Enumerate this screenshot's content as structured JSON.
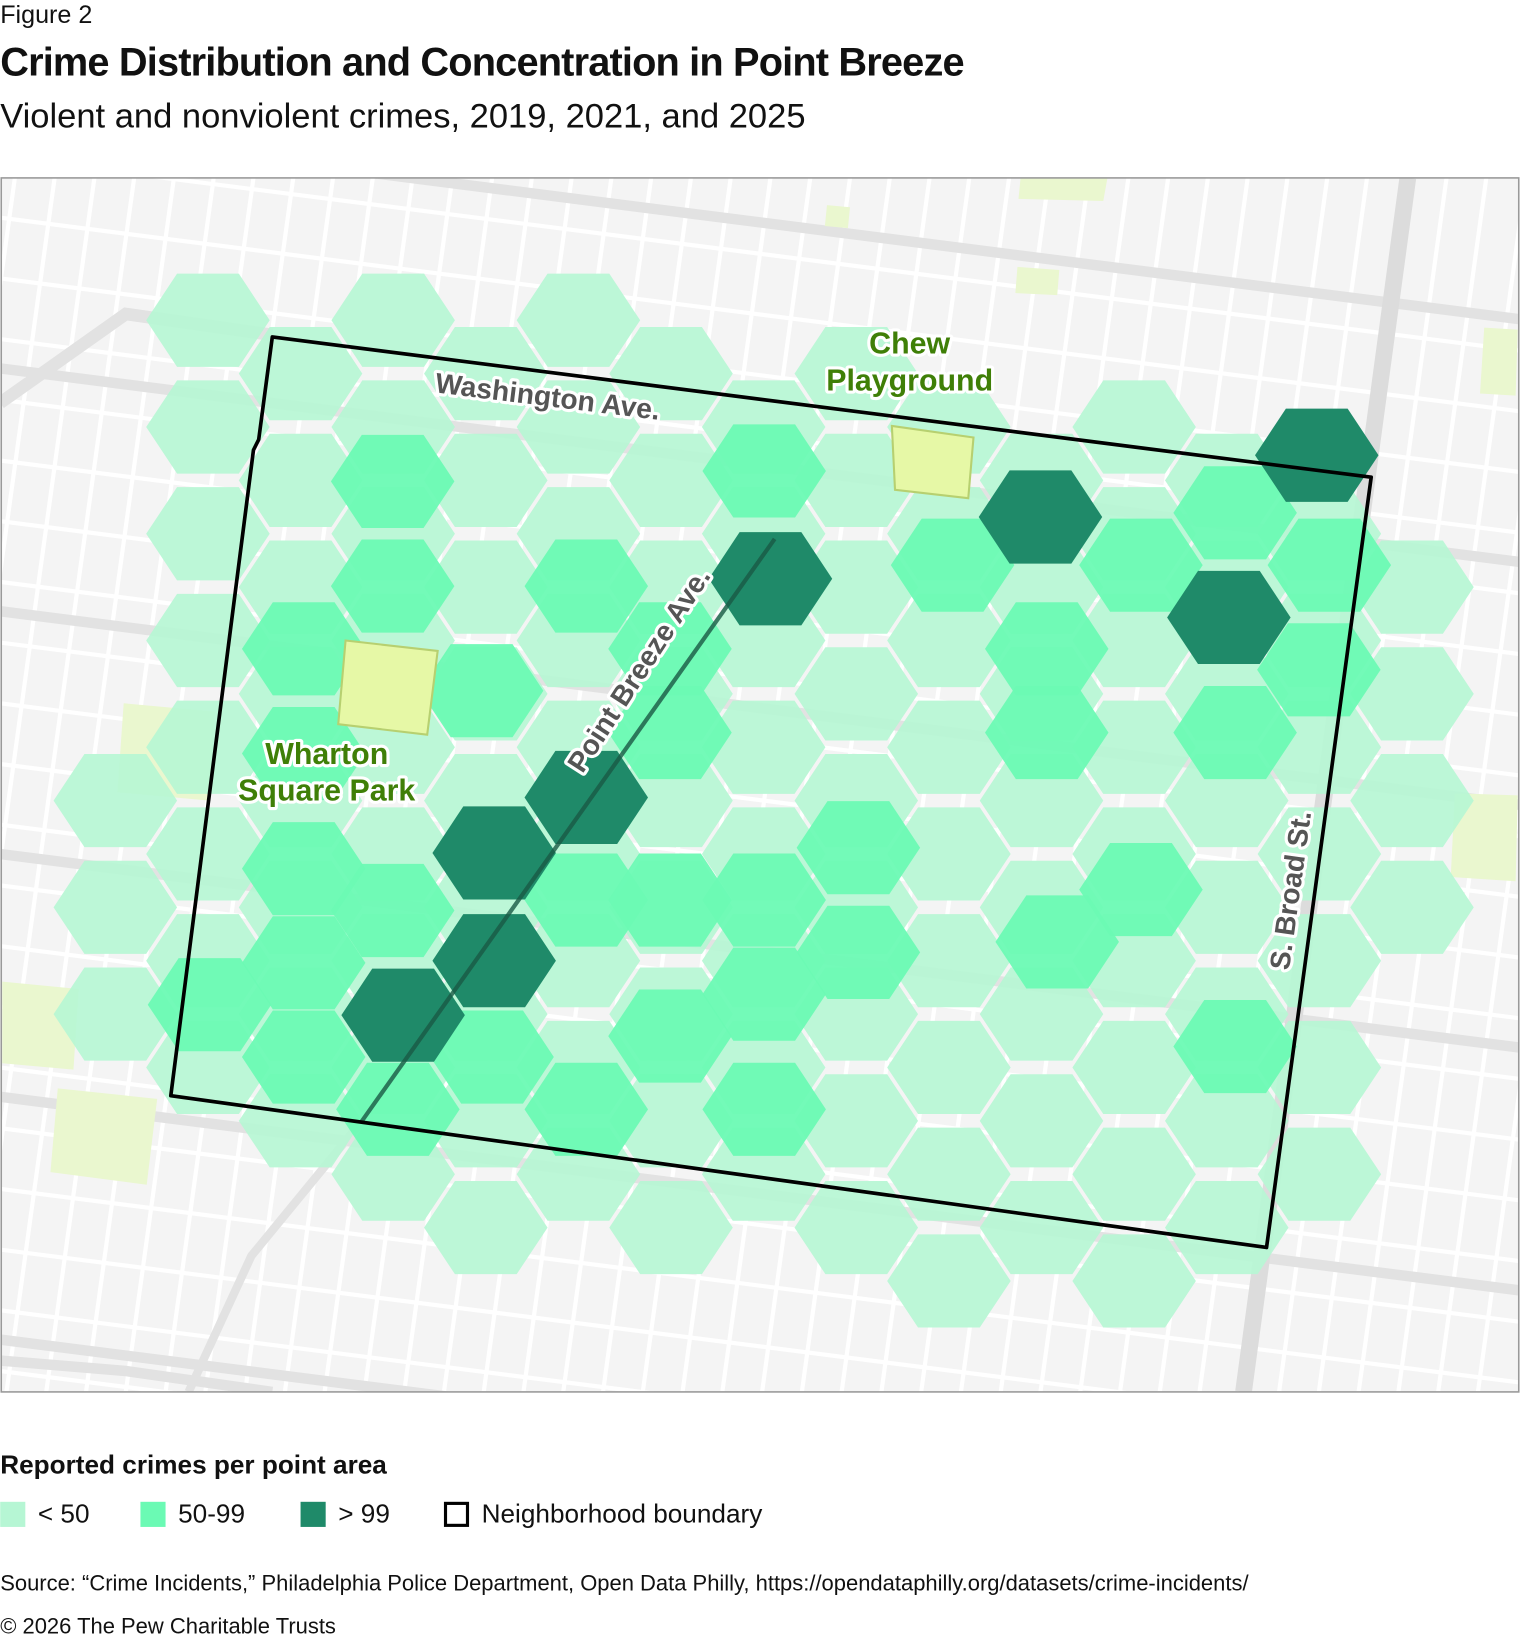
{
  "figure_label": "Figure 2",
  "title": "Crime Distribution and Concentration in Point Breeze",
  "subtitle": "Violent and nonviolent crimes, 2019, 2021, and 2025",
  "map": {
    "street_labels": [
      "Washington Ave.",
      "Point Breeze Ave.",
      "S. Broad St."
    ],
    "park_labels": [
      {
        "lines": [
          "Chew",
          "Playground"
        ]
      },
      {
        "lines": [
          "Wharton",
          "Square Park"
        ]
      }
    ]
  },
  "legend": {
    "title": "Reported crimes per point area",
    "items": [
      {
        "label": "< 50",
        "color": "#b6f6d4"
      },
      {
        "label": "50-99",
        "color": "#6bfab4"
      },
      {
        "label": "> 99",
        "color": "#1f8a69"
      },
      {
        "label": "Neighborhood boundary",
        "color": "#000000"
      }
    ]
  },
  "source": "Source: “Crime Incidents,” Philadelphia Police Department, Open Data Philly, https://opendataphilly.org/datasets/crime-incidents/",
  "copyright": "© 2026 The Pew Charitable Trusts"
}
